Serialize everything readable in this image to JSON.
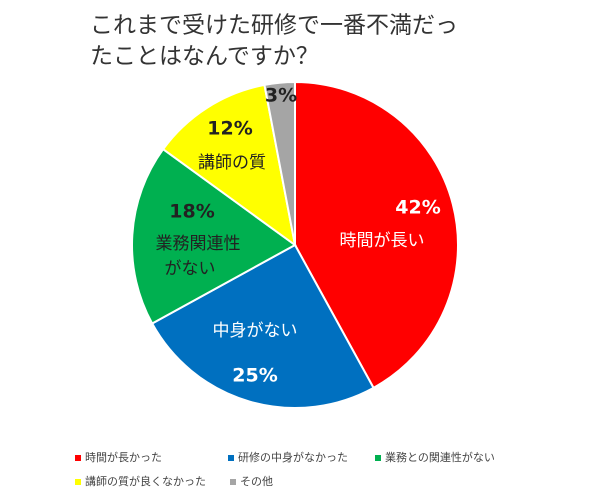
{
  "chart_data": {
    "type": "pie",
    "title_lines": [
      "これまで受けた研修で一番不満だっ",
      "たことはなんですか？"
    ],
    "categories": [
      "時間が長かった",
      "研修の中身がなかった",
      "業務との関連性がない",
      "講師の質が良くなかった",
      "その他"
    ],
    "values": [
      42,
      25,
      18,
      12,
      3
    ],
    "value_labels": [
      "42%",
      "25%",
      "18%",
      "12%",
      "3%"
    ],
    "slice_labels": [
      [
        "時間が長い"
      ],
      [
        "中身がない"
      ],
      [
        "業務関連性",
        "がない"
      ],
      [
        "講師の質"
      ],
      []
    ],
    "colors": [
      "#ff0000",
      "#0070c0",
      "#00b050",
      "#ffff00",
      "#a5a5a5"
    ],
    "legend": "bottom"
  }
}
